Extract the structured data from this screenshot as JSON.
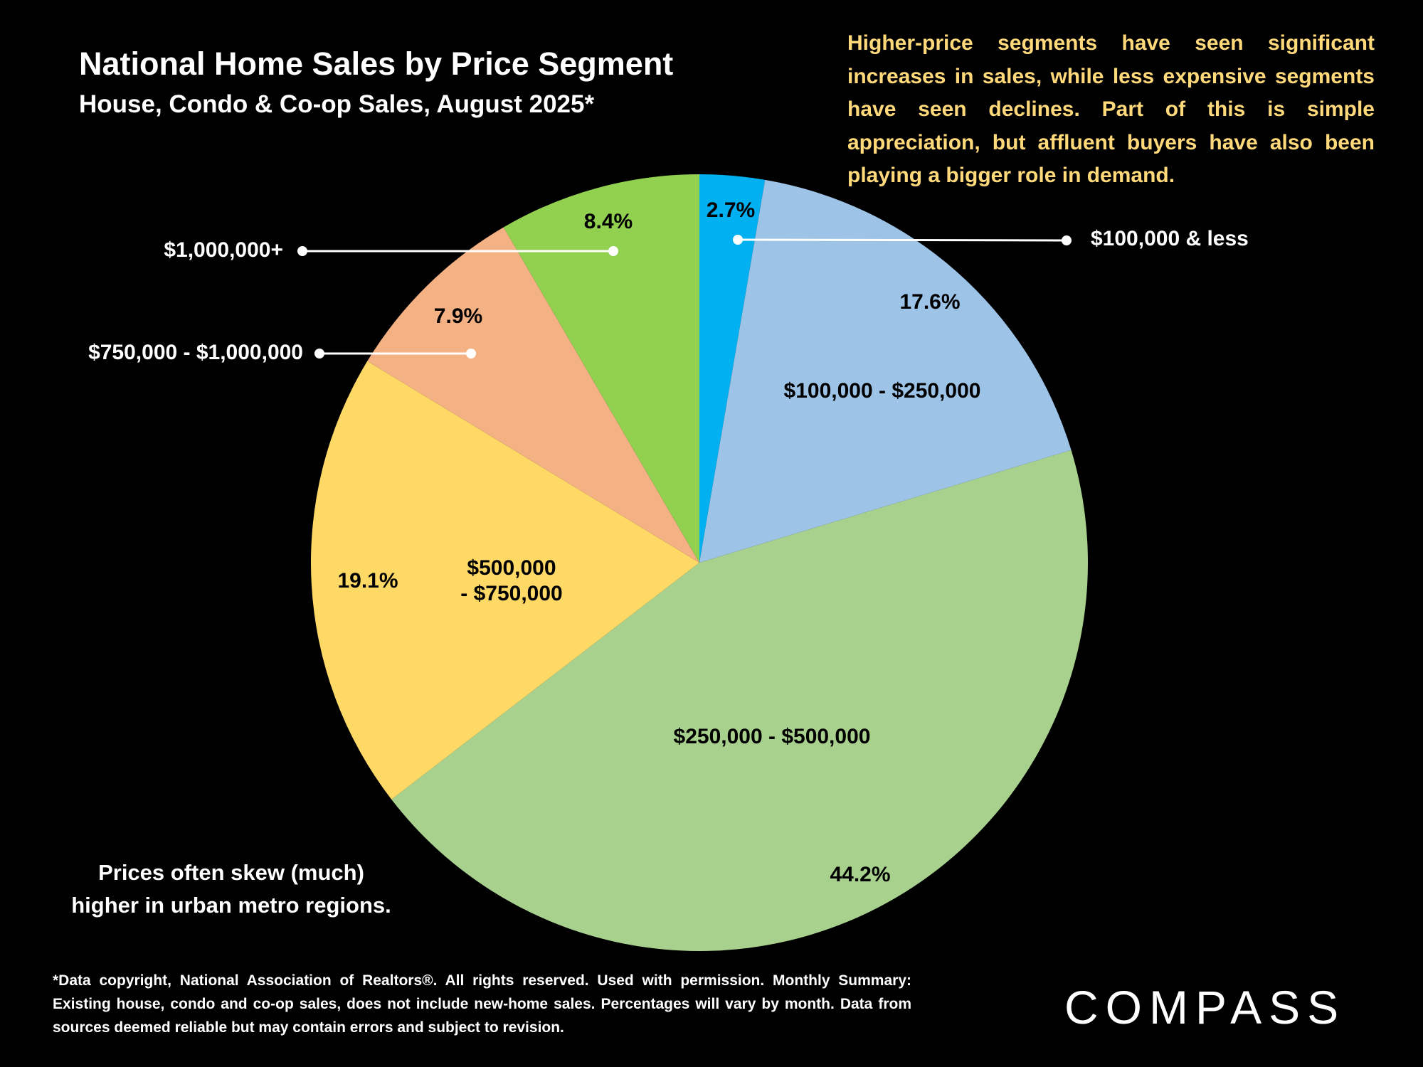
{
  "chart_data": {
    "type": "pie",
    "title": "National Home Sales by Price Segment",
    "subtitle": "House, Condo & Co-op Sales, August 2025*",
    "annotation": "Higher-price segments have seen significant increases in sales, while less expensive segments have seen declines. Part of this is simple appreciation, but affluent buyers have also been playing a bigger role in demand.",
    "note": "Prices often skew (much)\nhigher in urban metro regions.",
    "footnote": "*Data copyright, National Association of Realtors®. All rights reserved. Used with permission. Monthly Summary:  Existing house, condo and co-op sales, does not include new-home sales. Percentages will vary by month. Data from sources deemed reliable but may contain errors and subject to revision.",
    "logo": "COMPASS",
    "categories": [
      "$100,000 & less",
      "$100,000 - $250,000",
      "$250,000 - $500,000",
      "$500,000\n- $750,000",
      "$750,000 - $1,000,000",
      "$1,000,000+"
    ],
    "values": [
      2.7,
      17.6,
      44.2,
      19.1,
      7.9,
      8.4
    ],
    "value_labels": [
      "2.7%",
      "17.6%",
      "44.2%",
      "19.1%",
      "7.9%",
      "8.4%"
    ],
    "colors": [
      "#00b0f0",
      "#9dc3e6",
      "#a9d18e",
      "#ffd966",
      "#f4b183",
      "#92d050"
    ]
  }
}
